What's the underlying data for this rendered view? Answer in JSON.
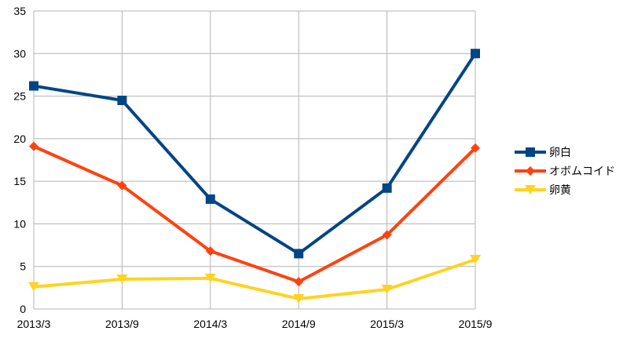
{
  "chart_data": {
    "type": "line",
    "categories": [
      "2013/3",
      "2013/9",
      "2014/3",
      "2014/9",
      "2015/3",
      "2015/9"
    ],
    "ylim": [
      0,
      35
    ],
    "yticks": [
      0,
      5,
      10,
      15,
      20,
      25,
      30,
      35
    ],
    "grid": true,
    "legend_position": "right",
    "series": [
      {
        "name": "卵白",
        "color": "#004586",
        "marker": "square",
        "values": [
          26.2,
          24.5,
          12.9,
          6.5,
          14.2,
          30.0
        ]
      },
      {
        "name": "オボムコイド",
        "color": "#ff420e",
        "marker": "diamond",
        "values": [
          19.1,
          14.5,
          6.8,
          3.2,
          8.7,
          18.9
        ]
      },
      {
        "name": "卵黄",
        "color": "#ffd320",
        "marker": "triangle-down",
        "values": [
          2.6,
          3.5,
          3.6,
          1.2,
          2.3,
          5.8
        ]
      }
    ]
  }
}
